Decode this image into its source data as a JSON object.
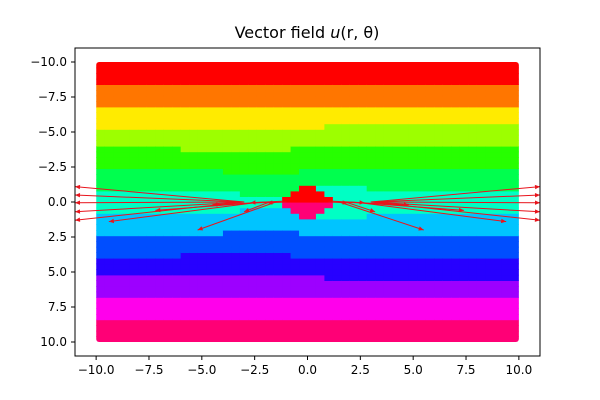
{
  "chart_data": {
    "type": "contourf+quiver",
    "title": "Vector field ⃗u(r, θ)",
    "title_parts": {
      "prefix": "Vector field ",
      "symbol": "u",
      "args": "(r, θ)"
    },
    "xlabel": "",
    "ylabel": "",
    "xlim": [
      -11.0,
      11.0
    ],
    "ylim": [
      -11.0,
      11.0
    ],
    "xticks": [
      -10.0,
      -7.5,
      -5.0,
      -2.5,
      0.0,
      2.5,
      5.0,
      7.5,
      10.0
    ],
    "yticks": [
      -10.0,
      -7.5,
      -5.0,
      -2.5,
      0.0,
      2.5,
      5.0,
      7.5,
      10.0
    ],
    "xtick_labels": [
      "−10.0",
      "−7.5",
      "−5.0",
      "−2.5",
      "0.0",
      "2.5",
      "5.0",
      "7.5",
      "10.0"
    ],
    "ytick_labels": [
      "10.0",
      "7.5",
      "5.0",
      "2.5",
      "0.0",
      "−2.5",
      "−5.0",
      "−7.5",
      "−10.0"
    ],
    "field_domain": {
      "x": [
        -10.0,
        10.0
      ],
      "y": [
        -10.0,
        10.0
      ]
    },
    "colormap": "hsv",
    "levels": 13,
    "grid": false,
    "legend": "none",
    "arrow_color": "#e8141c",
    "arrows": [
      {
        "x0": -1.5,
        "y0": 0.0,
        "x1": -5.2,
        "y1": -2.0
      },
      {
        "x0": 1.5,
        "y0": 0.0,
        "x1": 5.5,
        "y1": -2.0
      },
      {
        "x0": -2.5,
        "y0": -0.05,
        "x1": -9.4,
        "y1": -1.4
      },
      {
        "x0": 2.5,
        "y0": -0.05,
        "x1": 9.4,
        "y1": -1.4
      },
      {
        "x0": -2.0,
        "y0": 0.0,
        "x1": -7.2,
        "y1": -0.6
      },
      {
        "x0": 2.0,
        "y0": 0.0,
        "x1": 7.4,
        "y1": -0.6
      },
      {
        "x0": -1.8,
        "y0": 0.0,
        "x1": -3.0,
        "y1": -0.7
      },
      {
        "x0": 1.8,
        "y0": 0.0,
        "x1": 3.2,
        "y1": -0.7
      },
      {
        "x0": -1.5,
        "y0": 0.0,
        "x1": -4.5,
        "y1": -0.2
      },
      {
        "x0": 1.5,
        "y0": 0.0,
        "x1": 4.8,
        "y1": -0.2
      },
      {
        "x0": -1.2,
        "y0": 0.05,
        "x1": -2.7,
        "y1": -0.05
      },
      {
        "x0": 1.2,
        "y0": 0.05,
        "x1": 2.7,
        "y1": -0.05
      },
      {
        "x0": -1.0,
        "y0": 0.0,
        "x1": -1.9,
        "y1": -0.05
      },
      {
        "x0": 1.0,
        "y0": 0.0,
        "x1": 1.9,
        "y1": -0.05
      },
      {
        "x0": -3.0,
        "y0": 0.0,
        "x1": -11.0,
        "y1": 1.1
      },
      {
        "x0": 3.0,
        "y0": 0.0,
        "x1": 11.0,
        "y1": 1.1
      },
      {
        "x0": -3.0,
        "y0": 0.0,
        "x1": -11.0,
        "y1": 0.5
      },
      {
        "x0": 3.0,
        "y0": 0.0,
        "x1": 11.0,
        "y1": 0.5
      },
      {
        "x0": -3.0,
        "y0": 0.0,
        "x1": -11.0,
        "y1": -0.05
      },
      {
        "x0": 3.0,
        "y0": 0.0,
        "x1": 11.0,
        "y1": -0.05
      },
      {
        "x0": -3.0,
        "y0": 0.0,
        "x1": -11.0,
        "y1": -0.7
      },
      {
        "x0": 3.0,
        "y0": 0.0,
        "x1": 11.0,
        "y1": -0.7
      },
      {
        "x0": -3.0,
        "y0": 0.0,
        "x1": -11.0,
        "y1": -1.3
      },
      {
        "x0": 3.0,
        "y0": 0.0,
        "x1": 11.0,
        "y1": -1.3
      }
    ]
  }
}
